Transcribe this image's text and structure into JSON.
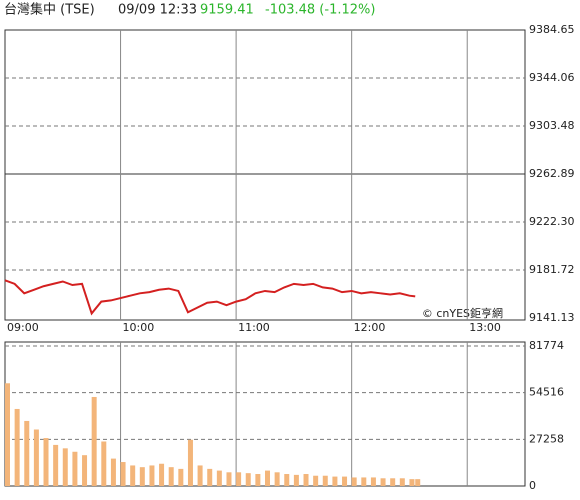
{
  "header": {
    "name": "台灣集中 (TSE)",
    "time": "09/09 12:33",
    "price": "9159.41",
    "change": "-103.48 (-1.12%)"
  },
  "credit": "© cnYES鉅亨網",
  "chart_data": [
    {
      "type": "line",
      "color": "#d42020",
      "reference": 9262.89,
      "x": [
        "09:00",
        "09:05",
        "09:10",
        "09:15",
        "09:20",
        "09:25",
        "09:30",
        "09:35",
        "09:40",
        "09:45",
        "09:50",
        "09:55",
        "10:00",
        "10:05",
        "10:10",
        "10:15",
        "10:20",
        "10:25",
        "10:30",
        "10:35",
        "10:40",
        "10:45",
        "10:50",
        "10:55",
        "11:00",
        "11:05",
        "11:10",
        "11:15",
        "11:20",
        "11:25",
        "11:30",
        "11:35",
        "11:40",
        "11:45",
        "11:50",
        "11:55",
        "12:00",
        "12:05",
        "12:10",
        "12:15",
        "12:20",
        "12:25",
        "12:30",
        "12:33"
      ],
      "values": [
        9173,
        9170,
        9162,
        9165,
        9168,
        9170,
        9172,
        9169,
        9170,
        9145,
        9155,
        9156,
        9158,
        9160,
        9162,
        9163,
        9165,
        9166,
        9164,
        9146,
        9150,
        9154,
        9155,
        9152,
        9155,
        9157,
        9162,
        9164,
        9163,
        9167,
        9170,
        9169,
        9170,
        9167,
        9166,
        9163,
        9164,
        9162,
        9163,
        9162,
        9161,
        9162,
        9160,
        9159.41
      ],
      "xlim": [
        "09:00",
        "13:30"
      ],
      "xticks": [
        "09:00",
        "10:00",
        "11:00",
        "12:00",
        "13:00"
      ],
      "ylim": [
        9141.13,
        9384.65
      ],
      "yticks": [
        9141.13,
        9181.72,
        {
          "value": 9222.3,
          "label": "9222.30"
        },
        9262.89,
        9303.48,
        9344.06,
        9384.65
      ]
    },
    {
      "type": "bar",
      "color": "#f3b57a",
      "x": [
        "09:00",
        "09:05",
        "09:10",
        "09:15",
        "09:20",
        "09:25",
        "09:30",
        "09:35",
        "09:40",
        "09:45",
        "09:50",
        "09:55",
        "10:00",
        "10:05",
        "10:10",
        "10:15",
        "10:20",
        "10:25",
        "10:30",
        "10:35",
        "10:40",
        "10:45",
        "10:50",
        "10:55",
        "11:00",
        "11:05",
        "11:10",
        "11:15",
        "11:20",
        "11:25",
        "11:30",
        "11:35",
        "11:40",
        "11:45",
        "11:50",
        "11:55",
        "12:00",
        "12:05",
        "12:10",
        "12:15",
        "12:20",
        "12:25",
        "12:30",
        "12:33"
      ],
      "values": [
        60000,
        45000,
        38000,
        33000,
        28000,
        24000,
        22000,
        20000,
        18000,
        52000,
        26000,
        16000,
        14000,
        12000,
        11000,
        12000,
        13000,
        11000,
        10000,
        27000,
        12000,
        10000,
        9000,
        8000,
        8000,
        7500,
        7000,
        9000,
        8000,
        7000,
        6500,
        7000,
        6000,
        6000,
        5500,
        5500,
        5000,
        5000,
        5000,
        4500,
        4500,
        4500,
        4000,
        4000
      ],
      "xlim": [
        "09:00",
        "13:30"
      ],
      "ylim": [
        0,
        81774
      ],
      "yticks": [
        0,
        27258,
        54516,
        81774
      ]
    }
  ]
}
